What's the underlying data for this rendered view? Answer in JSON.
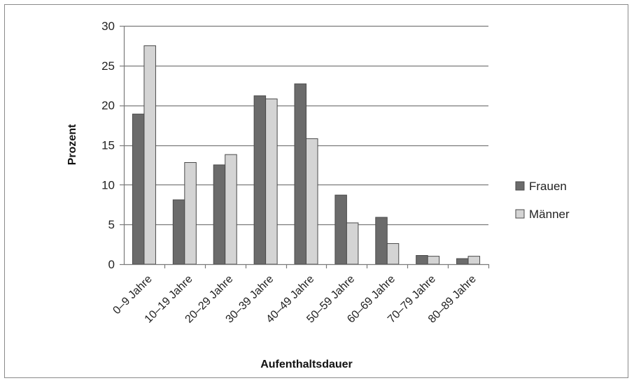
{
  "chart_data": {
    "type": "bar",
    "title": "",
    "xlabel": "Aufenthaltsdauer",
    "ylabel": "Prozent",
    "ylim": [
      0,
      30
    ],
    "yticks": [
      0,
      5,
      10,
      15,
      20,
      25,
      30
    ],
    "grid": true,
    "legend_position": "right",
    "categories": [
      "0–9  Jahre",
      "10–19 Jahre",
      "20–29 Jahre",
      "30–39 Jahre",
      "40–49 Jahre",
      "50–59 Jahre",
      "60–69 Jahre",
      "70–79 Jahre",
      "80–89 Jahre"
    ],
    "series": [
      {
        "name": "Frauen",
        "color": "#6b6b6b",
        "values": [
          18.9,
          8.1,
          12.5,
          21.2,
          22.7,
          8.7,
          5.9,
          1.1,
          0.7
        ]
      },
      {
        "name": "Männer",
        "color": "#d4d4d4",
        "values": [
          27.5,
          12.8,
          13.8,
          20.8,
          15.8,
          5.2,
          2.6,
          1.0,
          1.0
        ]
      }
    ]
  }
}
